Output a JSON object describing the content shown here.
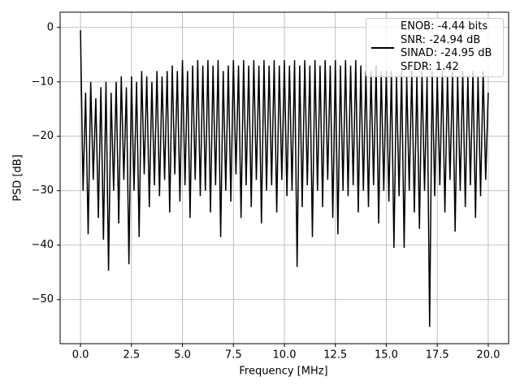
{
  "chart_data": {
    "type": "line",
    "xlabel": "Frequency [MHz]",
    "ylabel": "PSD [dB]",
    "xlim": [
      -1.0,
      21.0
    ],
    "ylim": [
      -58.1,
      2.8
    ],
    "xticks": [
      {
        "value": 0,
        "label": "0.0"
      },
      2.5,
      {
        "value": 5,
        "label": "5.0"
      },
      7.5,
      {
        "value": 10,
        "label": "10.0"
      },
      12.5,
      {
        "value": 15,
        "label": "15.0"
      },
      17.5,
      {
        "value": 20,
        "label": "20.0"
      }
    ],
    "yticks": [
      0,
      {
        "value": -10,
        "label": "−10"
      },
      {
        "value": -20,
        "label": "−20"
      },
      {
        "value": -30,
        "label": "−30"
      },
      {
        "value": -40,
        "label": "−40"
      },
      {
        "value": -50,
        "label": "−50"
      }
    ],
    "grid": true,
    "legend": "upper right",
    "x": [
      0,
      0.125,
      0.25,
      0.375,
      0.5,
      0.625,
      0.75,
      0.875,
      1,
      1.125,
      1.25,
      1.375,
      1.5,
      1.625,
      1.75,
      1.875,
      2,
      2.125,
      2.25,
      2.375,
      2.5,
      2.625,
      2.75,
      2.875,
      3,
      3.125,
      3.25,
      3.375,
      3.5,
      3.625,
      3.75,
      3.875,
      4,
      4.125,
      4.25,
      4.375,
      4.5,
      4.625,
      4.75,
      4.875,
      5,
      5.125,
      5.25,
      5.375,
      5.5,
      5.625,
      5.75,
      5.875,
      6,
      6.125,
      6.25,
      6.375,
      6.5,
      6.625,
      6.75,
      6.875,
      7,
      7.125,
      7.25,
      7.375,
      7.5,
      7.625,
      7.75,
      7.875,
      8,
      8.125,
      8.25,
      8.375,
      8.5,
      8.625,
      8.75,
      8.875,
      9,
      9.125,
      9.25,
      9.375,
      9.5,
      9.625,
      9.75,
      9.875,
      10,
      10.125,
      10.25,
      10.375,
      10.5,
      10.625,
      10.75,
      10.875,
      11,
      11.125,
      11.25,
      11.375,
      11.5,
      11.625,
      11.75,
      11.875,
      12,
      12.125,
      12.25,
      12.375,
      12.5,
      12.625,
      12.75,
      12.875,
      13,
      13.125,
      13.25,
      13.375,
      13.5,
      13.625,
      13.75,
      13.875,
      14,
      14.125,
      14.25,
      14.375,
      14.5,
      14.625,
      14.75,
      14.875,
      15,
      15.125,
      15.25,
      15.375,
      15.5,
      15.625,
      15.75,
      15.875,
      16,
      16.125,
      16.25,
      16.375,
      16.5,
      16.625,
      16.75,
      16.875,
      17,
      17.125,
      17.25,
      17.375,
      17.5,
      17.625,
      17.75,
      17.875,
      18,
      18.125,
      18.25,
      18.375,
      18.5,
      18.625,
      18.75,
      18.875,
      19,
      19.125,
      19.25,
      19.375,
      19.5,
      19.625,
      19.75,
      19.875,
      20
    ],
    "series": [
      {
        "name": "ENOB: -4.44 bits\nSNR: -24.94 dB\nSINAD: -24.95 dB\nSFDR: 1.42",
        "color": "#000000",
        "values": [
          -0.5,
          -30,
          -12,
          -38,
          -10,
          -28,
          -13,
          -35,
          -11,
          -39,
          -10,
          -44.7,
          -12,
          -30,
          -10,
          -36,
          -9,
          -28,
          -11,
          -43.5,
          -9,
          -30,
          -10,
          -38.5,
          -8,
          -27,
          -9,
          -33,
          -10,
          -29,
          -8,
          -31,
          -9,
          -28,
          -8,
          -34,
          -7,
          -27,
          -8,
          -32,
          -6,
          -29,
          -8,
          -35,
          -7,
          -28,
          -6,
          -31,
          -7,
          -30,
          -6,
          -34,
          -7,
          -29,
          -6,
          -38.5,
          -8,
          -30,
          -7,
          -32,
          -6,
          -27,
          -7,
          -35,
          -6,
          -29,
          -7,
          -33,
          -6,
          -28,
          -7,
          -36,
          -6,
          -30,
          -7,
          -29,
          -6,
          -34,
          -7,
          -28,
          -6,
          -31,
          -7,
          -30,
          -6,
          -44,
          -7,
          -33,
          -6,
          -29,
          -7,
          -38.5,
          -6,
          -30,
          -7,
          -33,
          -6,
          -28,
          -7,
          -35,
          -6,
          -38,
          -7,
          -30,
          -6,
          -31,
          -7,
          -29,
          -6,
          -34,
          -7,
          -30,
          -8,
          -33,
          -8,
          -29,
          -7,
          -36,
          -8,
          -30,
          -8,
          -32,
          -8,
          -40.5,
          -9,
          -31,
          -8,
          -40.5,
          -9,
          -30,
          -8,
          -34,
          -9,
          -37,
          -8,
          -30,
          -9,
          -55,
          -8,
          -31,
          -9,
          -29,
          -8,
          -34,
          -9,
          -28,
          -8,
          -37.5,
          -9,
          -30,
          -8,
          -33,
          -9,
          -29,
          -8,
          -35,
          -9,
          -31,
          -8,
          -28,
          -12
        ]
      }
    ]
  }
}
